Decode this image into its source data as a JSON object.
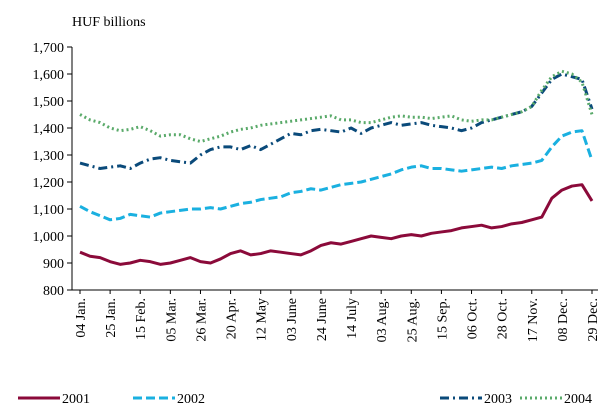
{
  "chart_data": {
    "type": "line",
    "y_axis_label": "HUF billions",
    "categories": [
      "04 Jan.",
      null,
      null,
      "25 Jan.",
      null,
      null,
      "15 Feb.",
      null,
      null,
      "05 Mar.",
      null,
      null,
      "26 Mar.",
      null,
      null,
      "20 Apr.",
      null,
      null,
      "12 May",
      null,
      null,
      "03 June",
      null,
      null,
      "24 June",
      null,
      null,
      "14 July",
      null,
      null,
      "03 Aug.",
      null,
      null,
      "25 Aug.",
      null,
      null,
      "15 Sep.",
      null,
      null,
      "06 Oct.",
      null,
      null,
      "28 Oct.",
      null,
      null,
      "17 Nov.",
      null,
      null,
      "08 Dec.",
      null,
      null,
      "29 Dec."
    ],
    "series": [
      {
        "name": "2001",
        "color": "#8b0a3a",
        "dash": "solid",
        "values": [
          940,
          925,
          920,
          905,
          895,
          900,
          910,
          905,
          895,
          900,
          910,
          920,
          905,
          900,
          915,
          935,
          945,
          930,
          935,
          945,
          940,
          935,
          930,
          945,
          965,
          975,
          970,
          980,
          990,
          1000,
          995,
          990,
          1000,
          1005,
          1000,
          1010,
          1015,
          1020,
          1030,
          1035,
          1040,
          1030,
          1035,
          1045,
          1050,
          1060,
          1070,
          1140,
          1170,
          1185,
          1190,
          1130
        ]
      },
      {
        "name": "2002",
        "color": "#1ab0e0",
        "dash": "dashed",
        "values": [
          1110,
          1090,
          1075,
          1060,
          1065,
          1080,
          1075,
          1070,
          1085,
          1090,
          1095,
          1100,
          1100,
          1105,
          1100,
          1110,
          1120,
          1125,
          1135,
          1140,
          1145,
          1160,
          1165,
          1175,
          1170,
          1180,
          1190,
          1195,
          1200,
          1210,
          1220,
          1230,
          1245,
          1255,
          1260,
          1250,
          1250,
          1245,
          1240,
          1245,
          1250,
          1255,
          1250,
          1260,
          1265,
          1270,
          1280,
          1330,
          1370,
          1385,
          1390,
          1280
        ]
      },
      {
        "name": "2003",
        "color": "#0a4a7a",
        "dash": "dashdot",
        "values": [
          1270,
          1260,
          1250,
          1255,
          1260,
          1250,
          1270,
          1285,
          1290,
          1280,
          1275,
          1270,
          1300,
          1320,
          1330,
          1330,
          1320,
          1335,
          1320,
          1340,
          1360,
          1380,
          1375,
          1390,
          1395,
          1390,
          1385,
          1400,
          1380,
          1400,
          1410,
          1420,
          1410,
          1415,
          1420,
          1410,
          1405,
          1400,
          1390,
          1400,
          1420,
          1430,
          1440,
          1450,
          1460,
          1480,
          1530,
          1580,
          1600,
          1590,
          1580,
          1470
        ]
      },
      {
        "name": "2004",
        "color": "#5aaa6a",
        "dash": "dotted",
        "values": [
          1450,
          1430,
          1420,
          1400,
          1390,
          1395,
          1405,
          1390,
          1370,
          1375,
          1375,
          1360,
          1350,
          1360,
          1370,
          1385,
          1395,
          1400,
          1410,
          1415,
          1420,
          1425,
          1430,
          1435,
          1440,
          1445,
          1430,
          1430,
          1420,
          1420,
          1430,
          1440,
          1445,
          1440,
          1440,
          1435,
          1440,
          1445,
          1430,
          1425,
          1430,
          1430,
          1440,
          1450,
          1460,
          1480,
          1540,
          1590,
          1610,
          1600,
          1570,
          1450
        ]
      }
    ],
    "ylim": [
      800,
      1700
    ],
    "yticks": [
      800,
      900,
      {
        "value": 1000,
        "label": "1,000"
      },
      {
        "value": 1100,
        "label": "1,100"
      },
      {
        "value": 1200,
        "label": "1,200"
      },
      {
        "value": 1300,
        "label": "1,300"
      },
      {
        "value": 1400,
        "label": "1,400"
      },
      {
        "value": 1500,
        "label": "1,500"
      },
      {
        "value": 1600,
        "label": "1,600"
      },
      {
        "value": 1700,
        "label": "1,700"
      }
    ],
    "grid": false,
    "legend": "bottom"
  }
}
